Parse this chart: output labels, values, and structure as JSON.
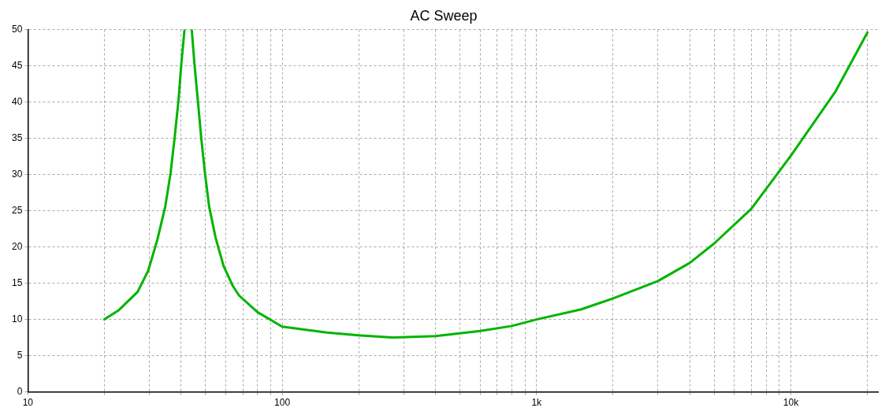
{
  "chart_data": {
    "type": "line",
    "title": "AC Sweep",
    "log": "x",
    "grid": true,
    "legend": false,
    "marker": "none",
    "line_style": "solid",
    "xlim": [
      10,
      22000
    ],
    "xticks": [
      10,
      {
        "value": 20,
        "label": null
      },
      {
        "value": 30,
        "label": null
      },
      {
        "value": 40,
        "label": null
      },
      {
        "value": 50,
        "label": null
      },
      {
        "value": 60,
        "label": null
      },
      {
        "value": 70,
        "label": null
      },
      {
        "value": 80,
        "label": null
      },
      {
        "value": 90,
        "label": null
      },
      100,
      {
        "value": 200,
        "label": null
      },
      {
        "value": 300,
        "label": null
      },
      {
        "value": 400,
        "label": null
      },
      {
        "value": 500,
        "label": null
      },
      {
        "value": 600,
        "label": null
      },
      {
        "value": 700,
        "label": null
      },
      {
        "value": 800,
        "label": null
      },
      {
        "value": 900,
        "label": null
      },
      {
        "value": 1000,
        "label": "1k"
      },
      {
        "value": 2000,
        "label": null
      },
      {
        "value": 3000,
        "label": null
      },
      {
        "value": 4000,
        "label": null
      },
      {
        "value": 5000,
        "label": null
      },
      {
        "value": 6000,
        "label": null
      },
      {
        "value": 7000,
        "label": null
      },
      {
        "value": 8000,
        "label": null
      },
      {
        "value": 9000,
        "label": null
      },
      {
        "value": 10000,
        "label": "10k"
      },
      {
        "value": 20000,
        "label": null
      }
    ],
    "ylim": [
      0,
      50
    ],
    "yticks": [
      0,
      5,
      10,
      15,
      20,
      25,
      30,
      35,
      40,
      45,
      50
    ],
    "series": [
      {
        "color": "#00b400",
        "x": [
          20,
          22.8,
          27,
          29.7,
          32.3,
          34.7,
          36.4,
          37.8,
          39.1,
          40.1,
          41.3,
          42.6,
          44.1,
          45.2,
          46.6,
          48,
          49.7,
          51.6,
          54.7,
          58.8,
          64,
          67.7,
          80,
          100,
          150,
          200,
          270,
          400,
          600,
          800,
          1000,
          1500,
          2000,
          3000,
          4000,
          5000,
          7000,
          10000,
          15000,
          20000
        ],
        "values": [
          10,
          11.3,
          13.8,
          16.7,
          21,
          25.6,
          30.2,
          35.2,
          40.2,
          45.2,
          50,
          null,
          50,
          45.2,
          40.2,
          35.2,
          30.2,
          25.6,
          21.3,
          17.4,
          14.6,
          13.3,
          11,
          9,
          8.2,
          7.8,
          7.5,
          7.7,
          8.4,
          9.1,
          10,
          11.4,
          12.9,
          15.3,
          17.8,
          20.5,
          25.3,
          32.6,
          41.5,
          49.6
        ]
      }
    ]
  }
}
